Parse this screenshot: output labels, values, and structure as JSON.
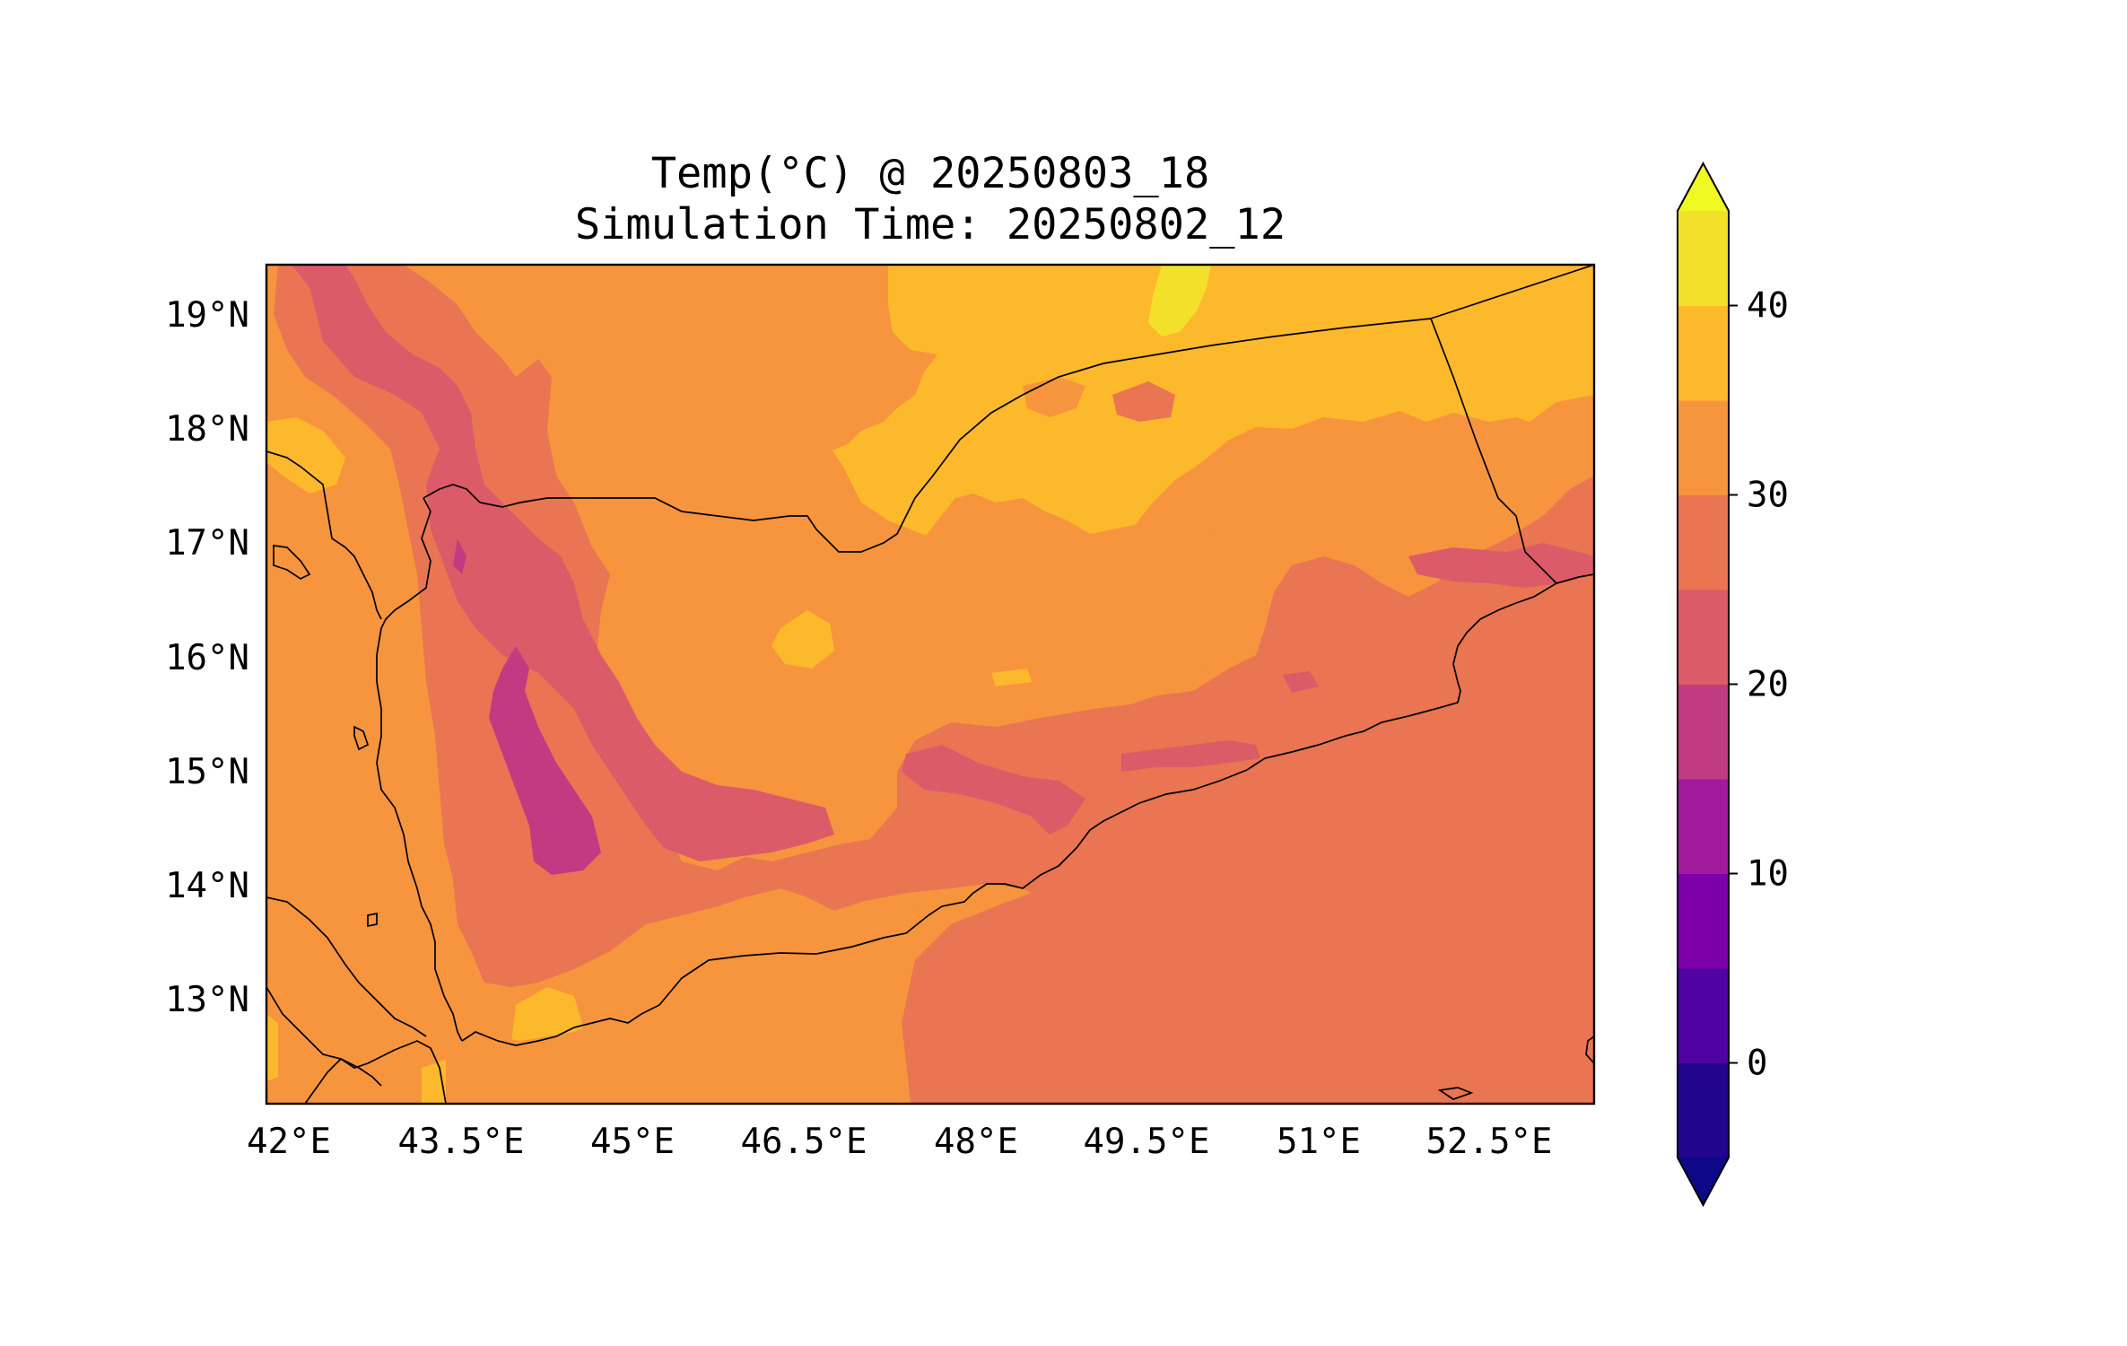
{
  "map": {
    "title": "Temp(°C) @ 20250803_18",
    "subtitle": "Simulation Time: 20250802_12",
    "lon_ticks": [
      "42°E",
      "43.5°E",
      "45°E",
      "46.5°E",
      "48°E",
      "49.5°E",
      "51°E",
      "52.5°E"
    ],
    "lat_ticks": [
      "19°N",
      "18°N",
      "17°N",
      "16°N",
      "15°N",
      "14°N",
      "13°N"
    ],
    "extent": {
      "lon": [
        41.9,
        53.7
      ],
      "lat": [
        12.1,
        19.4
      ]
    },
    "region": "Yemen and surrounding area"
  },
  "colorbar": {
    "ticks": [
      "0",
      "10",
      "20",
      "30",
      "40"
    ],
    "levels": [
      -5,
      0,
      5,
      10,
      15,
      20,
      25,
      30,
      35,
      40,
      45
    ],
    "colors": {
      "under": "#0d0887",
      "bins": [
        "#22048f",
        "#5002a2",
        "#7c00a8",
        "#a11b9c",
        "#c13b82",
        "#dc5b68",
        "#e97552",
        "#f6953e",
        "#fdb92c",
        "#f3e02b"
      ],
      "over": "#f0f921"
    },
    "extend": "both"
  }
}
